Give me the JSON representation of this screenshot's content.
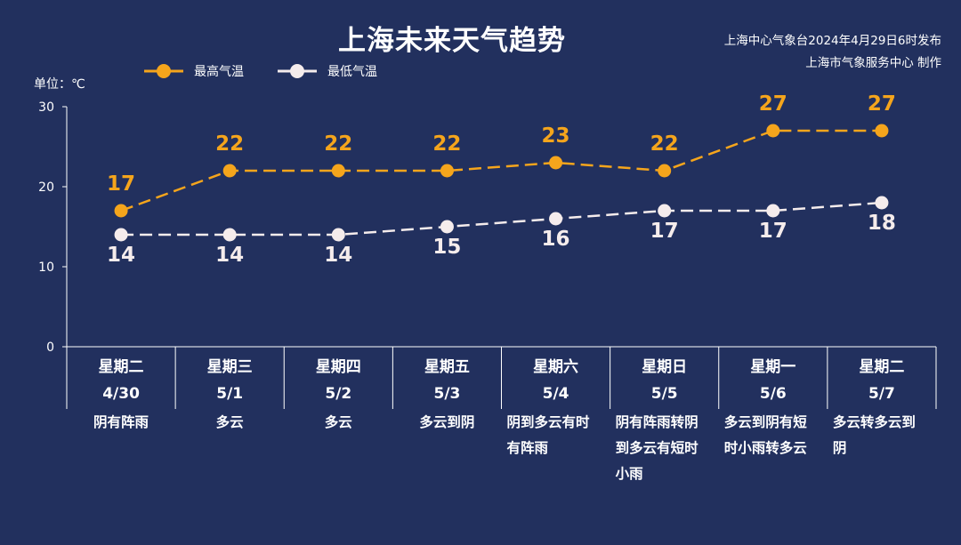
{
  "header": {
    "title": "上海未来天气趋势",
    "source_line1": "上海中心气象台2024年4月29日6时发布",
    "source_line2": "上海市气象服务中心 制作"
  },
  "unit_label": "单位：℃",
  "colors": {
    "background": "#22305e",
    "high": "#f5a51c",
    "low": "#f5ecec",
    "axis": "#ffffff"
  },
  "chart_data": {
    "type": "line",
    "title": "上海未来天气趋势",
    "ylabel": "单位：℃",
    "ylim": [
      0,
      30
    ],
    "yticks": [
      0,
      10,
      20,
      30
    ],
    "grid": false,
    "legend_position": "top-left",
    "categories": [
      "星期二",
      "星期三",
      "星期四",
      "星期五",
      "星期六",
      "星期日",
      "星期一",
      "星期二"
    ],
    "dates": [
      "4/30",
      "5/1",
      "5/2",
      "5/3",
      "5/4",
      "5/5",
      "5/6",
      "5/7"
    ],
    "weather": [
      "阴有阵雨",
      "多云",
      "多云",
      "多云到阴",
      "阴到多云有时有阵雨",
      "阴有阵雨转阴到多云有短时小雨",
      "多云到阴有短时小雨转多云",
      "多云转多云到阴"
    ],
    "series": [
      {
        "name": "最高气温",
        "values": [
          17,
          22,
          22,
          22,
          23,
          22,
          27,
          27
        ]
      },
      {
        "name": "最低气温",
        "values": [
          14,
          14,
          14,
          15,
          16,
          17,
          17,
          18
        ]
      }
    ]
  },
  "weather_lines": [
    [
      "阴有阵雨"
    ],
    [
      "多云"
    ],
    [
      "多云"
    ],
    [
      "多云到阴"
    ],
    [
      "阴到多云有时",
      "有阵雨"
    ],
    [
      "阴有阵雨转阴",
      "到多云有短时",
      "小雨"
    ],
    [
      "多云到阴有短",
      "时小雨转多云"
    ],
    [
      "多云转多云到",
      "阴"
    ]
  ]
}
